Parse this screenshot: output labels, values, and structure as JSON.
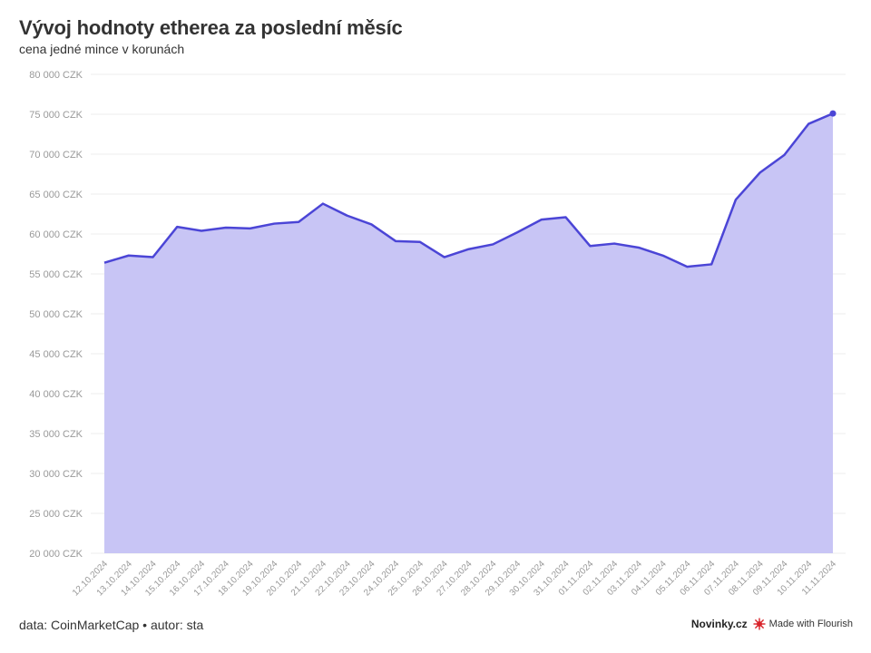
{
  "header": {
    "title": "Vývoj hodnoty etherea za poslední měsíc",
    "subtitle": "cena jedné mince v korunách"
  },
  "footer": {
    "source": "data: CoinMarketCap • autor: sta",
    "brand": "Novinky.cz",
    "made_with": "Made with Flourish"
  },
  "colors": {
    "line": "#4b45d6",
    "fill": "#c8c5f5",
    "grid": "#eeeeee",
    "tick_text": "#999999"
  },
  "chart_data": {
    "type": "area",
    "title": "Vývoj hodnoty etherea za poslední měsíc",
    "subtitle": "cena jedné mince v korunách",
    "ylim": [
      20000,
      80000
    ],
    "yticks": [
      20000,
      25000,
      30000,
      35000,
      40000,
      45000,
      50000,
      55000,
      60000,
      65000,
      70000,
      75000,
      80000
    ],
    "ytick_labels": [
      "20 000 CZK",
      "25 000 CZK",
      "30 000 CZK",
      "35 000 CZK",
      "40 000 CZK",
      "45 000 CZK",
      "50 000 CZK",
      "55 000 CZK",
      "60 000 CZK",
      "65 000 CZK",
      "70 000 CZK",
      "75 000 CZK",
      "80 000 CZK"
    ],
    "grid": true,
    "legend": "none",
    "categories": [
      "12.10.2024",
      "13.10.2024",
      "14.10.2024",
      "15.10.2024",
      "16.10.2024",
      "17.10.2024",
      "18.10.2024",
      "19.10.2024",
      "20.10.2024",
      "21.10.2024",
      "22.10.2024",
      "23.10.2024",
      "24.10.2024",
      "25.10.2024",
      "26.10.2024",
      "27.10.2024",
      "28.10.2024",
      "29.10.2024",
      "30.10.2024",
      "31.10.2024",
      "01.11.2024",
      "02.11.2024",
      "03.11.2024",
      "04.11.2024",
      "05.11.2024",
      "06.11.2024",
      "07.11.2024",
      "08.11.2024",
      "09.11.2024",
      "10.11.2024",
      "11.11.2024"
    ],
    "series": [
      {
        "values": [
          56400,
          57300,
          57100,
          60900,
          60400,
          60800,
          60700,
          61300,
          61500,
          63800,
          62300,
          61200,
          59100,
          59000,
          57100,
          58100,
          58700,
          60200,
          61800,
          62100,
          58500,
          58800,
          58300,
          57300,
          55900,
          56200,
          64300,
          67700,
          69900,
          73800,
          75100
        ]
      }
    ]
  }
}
